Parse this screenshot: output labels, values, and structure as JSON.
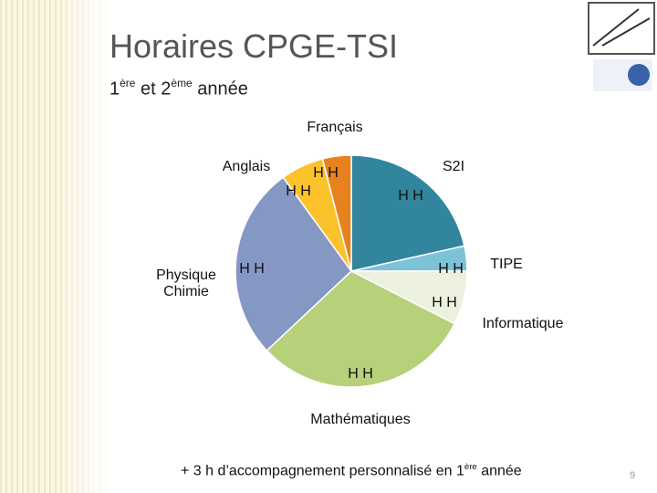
{
  "chart_data": {
    "type": "pie",
    "title": "Horaires CPGE-TSI",
    "subtitle": [
      "1",
      "ère",
      " et 2",
      "ème",
      " année"
    ],
    "categories": [
      "S2I",
      "TIPE",
      "Informatique",
      "Mathématiques",
      "Physique Chimie",
      "Anglais",
      "Français"
    ],
    "values": [
      21.5,
      3.5,
      7.5,
      30.5,
      27,
      6,
      4
    ],
    "value_labels": [
      "H H",
      "H H",
      "H H",
      "H H",
      "H H",
      "H H",
      "H H"
    ],
    "colors": [
      "#31859c",
      "#7cc3d8",
      "#ebf1de",
      "#b7d07a",
      "#8597c3",
      "#fcc22c",
      "#e8821e"
    ],
    "footnote": [
      "+ 3 h d’accompagnement personnalisé en 1",
      "ère",
      " année"
    ],
    "page_number": "9"
  }
}
